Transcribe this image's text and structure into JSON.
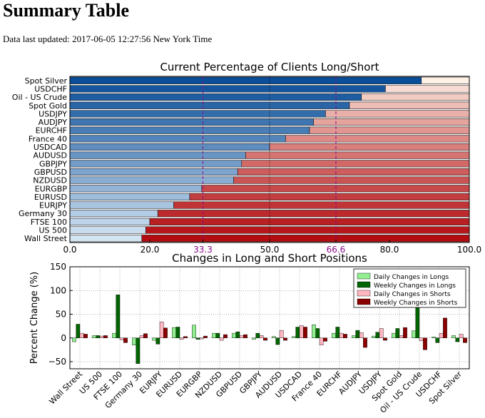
{
  "page": {
    "title": "Summary Table",
    "updated": "Data last updated: 2017-06-05 12:27:56 New York Time"
  },
  "chart_data": [
    {
      "type": "bar",
      "orientation": "horizontal-stacked",
      "title": "Current Percentage of Clients Long/Short",
      "xlim": [
        0,
        100
      ],
      "xticks": [
        "0.0",
        "20.0",
        "33.3",
        "50.0",
        "66.6",
        "80.0",
        "100.0"
      ],
      "reference_lines": [
        33.3,
        66.6
      ],
      "reference_color": "#8b0a8b",
      "categories": [
        "Spot Silver",
        "USDCHF",
        "Oil - US Crude",
        "Spot Gold",
        "USDJPY",
        "AUDJPY",
        "EURCHF",
        "France 40",
        "USDCAD",
        "AUDUSD",
        "GBPJPY",
        "GBPUSD",
        "NZDUSD",
        "EURGBP",
        "EURUSD",
        "EURJPY",
        "Germany 30",
        "FTSE 100",
        "US 500",
        "Wall Street"
      ],
      "series": [
        {
          "values": [
            88,
            79,
            73,
            70,
            64,
            61,
            60,
            54,
            50,
            44,
            43,
            42,
            41,
            33,
            30,
            26,
            22,
            20,
            19,
            18
          ]
        },
        {
          "values": [
            12,
            21,
            27,
            30,
            36,
            39,
            40,
            46,
            50,
            56,
            57,
            58,
            59,
            67,
            70,
            74,
            78,
            80,
            81,
            82
          ]
        }
      ]
    },
    {
      "type": "bar",
      "title": "Changes in Long and Short Positions",
      "ylabel": "Percent Change (%)",
      "ylim": [
        -65,
        150
      ],
      "yticks": [
        "−50",
        "0",
        "50",
        "100",
        "150"
      ],
      "grid": true,
      "legend_position": "top-right",
      "categories": [
        "Wall Street",
        "US 500",
        "FTSE 100",
        "Germany 30",
        "EURJPY",
        "EURUSD",
        "EURGBP",
        "NZDUSD",
        "GBPUSD",
        "GBPJPY",
        "AUDUSD",
        "USDCAD",
        "France 40",
        "EURCHF",
        "AUDJPY",
        "USDJPY",
        "Spot Gold",
        "Oil - US Crude",
        "USDCHF",
        "Spot Silver"
      ],
      "series": [
        {
          "name": "Daily Changes in Longs",
          "color": "#90ee90",
          "values": [
            -8,
            5,
            10,
            -15,
            -5,
            22,
            27,
            10,
            10,
            -3,
            3,
            3,
            28,
            10,
            5,
            4,
            10,
            15,
            2,
            5
          ]
        },
        {
          "name": "Weekly Changes in Longs",
          "color": "#006400",
          "values": [
            29,
            5,
            91,
            -54,
            -13,
            23,
            -3,
            10,
            13,
            10,
            -14,
            23,
            20,
            23,
            16,
            12,
            20,
            65,
            -10,
            -8
          ]
        },
        {
          "name": "Daily Changes in Shorts",
          "color": "#ffb6c1",
          "values": [
            10,
            4,
            -4,
            5,
            34,
            -3,
            -2,
            -5,
            5,
            5,
            16,
            26,
            -15,
            10,
            11,
            20,
            5,
            -6,
            10,
            8
          ]
        },
        {
          "name": "Weekly Changes in Shorts",
          "color": "#8b0000",
          "values": [
            8,
            5,
            -10,
            9,
            21,
            3,
            4,
            7,
            7,
            -5,
            -5,
            23,
            -7,
            8,
            -20,
            -5,
            22,
            -25,
            42,
            -10
          ]
        }
      ]
    }
  ]
}
